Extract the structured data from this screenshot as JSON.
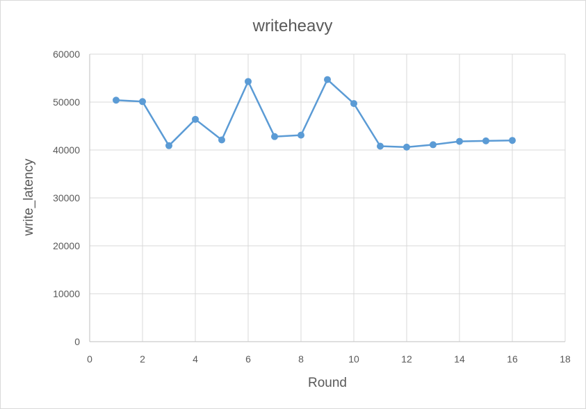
{
  "chart_data": {
    "type": "scatter",
    "title": "writeheavy",
    "xlabel": "Round",
    "ylabel": "write_latency",
    "xlim": [
      0,
      18
    ],
    "ylim": [
      0,
      60000
    ],
    "x_ticks": [
      0,
      2,
      4,
      6,
      8,
      10,
      12,
      14,
      16,
      18
    ],
    "y_ticks": [
      0,
      10000,
      20000,
      30000,
      40000,
      50000,
      60000
    ],
    "grid": true,
    "legend": "none",
    "series": [
      {
        "color": "#5b9bd5",
        "x": [
          1,
          2,
          3,
          4,
          5,
          6,
          7,
          8,
          9,
          10,
          11,
          12,
          13,
          14,
          15,
          16
        ],
        "y": [
          50400,
          50100,
          40900,
          46400,
          42100,
          54300,
          42800,
          43100,
          54700,
          49700,
          40800,
          40600,
          41100,
          41800,
          41900,
          42000
        ]
      }
    ]
  }
}
